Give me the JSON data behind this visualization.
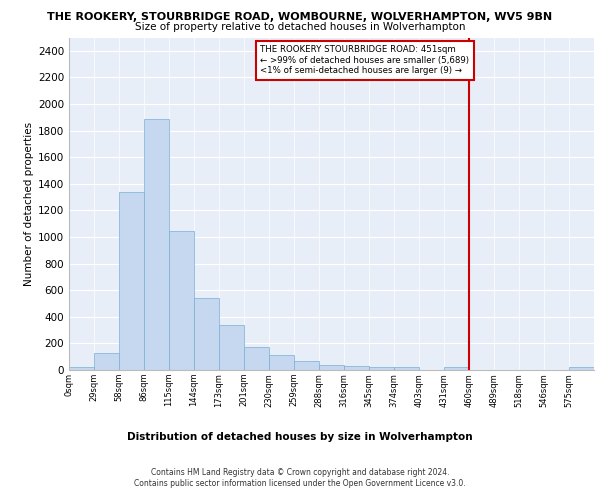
{
  "title": "THE ROOKERY, STOURBRIDGE ROAD, WOMBOURNE, WOLVERHAMPTON, WV5 9BN",
  "subtitle": "Size of property relative to detached houses in Wolverhampton",
  "xlabel": "Distribution of detached houses by size in Wolverhampton",
  "ylabel": "Number of detached properties",
  "bar_color": "#c5d8f0",
  "bar_edge_color": "#7aafd4",
  "background_color": "#e8eef8",
  "bin_labels": [
    "0sqm",
    "29sqm",
    "58sqm",
    "86sqm",
    "115sqm",
    "144sqm",
    "173sqm",
    "201sqm",
    "230sqm",
    "259sqm",
    "288sqm",
    "316sqm",
    "345sqm",
    "374sqm",
    "403sqm",
    "431sqm",
    "460sqm",
    "489sqm",
    "518sqm",
    "546sqm",
    "575sqm"
  ],
  "bar_heights": [
    20,
    130,
    1340,
    1890,
    1045,
    540,
    340,
    170,
    110,
    65,
    40,
    30,
    25,
    20,
    0,
    25,
    0,
    0,
    0,
    0,
    20
  ],
  "ylim": [
    0,
    2500
  ],
  "yticks": [
    0,
    200,
    400,
    600,
    800,
    1000,
    1200,
    1400,
    1600,
    1800,
    2000,
    2200,
    2400
  ],
  "vline_x_index": 16,
  "property_label_line1": "THE ROOKERY STOURBRIDGE ROAD: 451sqm",
  "property_label_line2": "← >99% of detached houses are smaller (5,689)",
  "property_label_line3": "<1% of semi-detached houses are larger (9) →",
  "vline_color": "#cc0000",
  "footer_line1": "Contains HM Land Registry data © Crown copyright and database right 2024.",
  "footer_line2": "Contains public sector information licensed under the Open Government Licence v3.0."
}
